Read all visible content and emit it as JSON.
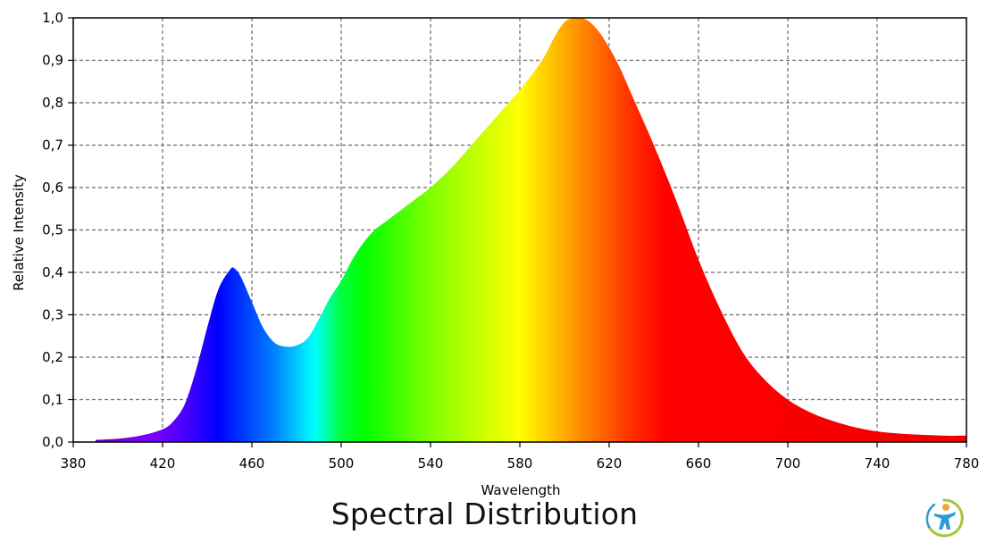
{
  "caption": "Spectral Distribution",
  "logo_icon": "person-circle-logo-icon",
  "colors": {
    "grid": "#6a6a6a",
    "axis": "#000000",
    "background": "#ffffff"
  },
  "chart_data": {
    "type": "area",
    "title": "",
    "xlabel": "Wavelength",
    "ylabel": "Relative Intensity",
    "xlim": [
      380,
      780
    ],
    "ylim": [
      0,
      1
    ],
    "grid": true,
    "legend": "none",
    "fill": "visible-spectrum gradient",
    "x_ticks": [
      "380",
      "420",
      "460",
      "500",
      "540",
      "580",
      "620",
      "660",
      "700",
      "740",
      "780"
    ],
    "y_ticks": [
      "0,0",
      "0,1",
      "0,2",
      "0,3",
      "0,4",
      "0,5",
      "0,6",
      "0,7",
      "0,8",
      "0,9",
      "1,0"
    ],
    "x": [
      390,
      400,
      410,
      420,
      425,
      430,
      435,
      440,
      445,
      450,
      452,
      455,
      460,
      465,
      470,
      475,
      480,
      485,
      490,
      495,
      500,
      505,
      510,
      515,
      520,
      530,
      540,
      550,
      560,
      570,
      580,
      590,
      595,
      600,
      605,
      610,
      615,
      620,
      625,
      630,
      640,
      650,
      660,
      670,
      680,
      690,
      700,
      710,
      720,
      730,
      740,
      750,
      760,
      770,
      780
    ],
    "values": [
      0.005,
      0.008,
      0.015,
      0.03,
      0.05,
      0.09,
      0.17,
      0.27,
      0.36,
      0.405,
      0.41,
      0.39,
      0.33,
      0.27,
      0.235,
      0.225,
      0.228,
      0.245,
      0.29,
      0.34,
      0.38,
      0.43,
      0.47,
      0.5,
      0.52,
      0.56,
      0.6,
      0.65,
      0.71,
      0.77,
      0.83,
      0.9,
      0.95,
      0.99,
      1.0,
      0.995,
      0.97,
      0.93,
      0.88,
      0.82,
      0.7,
      0.57,
      0.43,
      0.31,
      0.21,
      0.145,
      0.1,
      0.07,
      0.05,
      0.035,
      0.025,
      0.02,
      0.017,
      0.015,
      0.015
    ]
  }
}
